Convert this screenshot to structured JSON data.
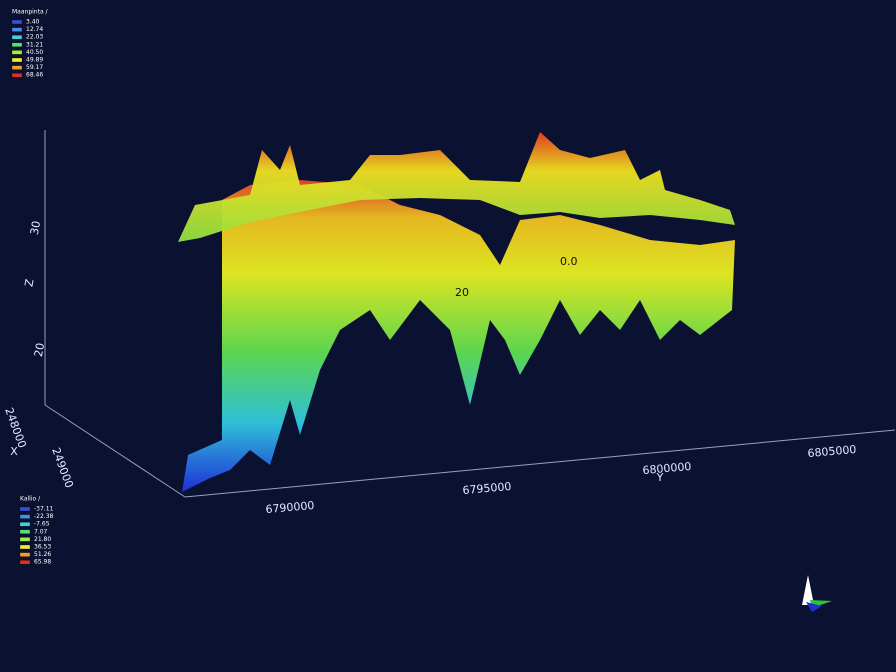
{
  "legends": [
    {
      "title": "Maanpinta /",
      "items": [
        {
          "label": "3.40",
          "color": "#3a4fd8"
        },
        {
          "label": "12.74",
          "color": "#4a8ee8"
        },
        {
          "label": "22.03",
          "color": "#45d0d8"
        },
        {
          "label": "31.21",
          "color": "#55e07a"
        },
        {
          "label": "40.50",
          "color": "#a4f040"
        },
        {
          "label": "49.89",
          "color": "#f0ee30"
        },
        {
          "label": "59.17",
          "color": "#f0a028"
        },
        {
          "label": "68.46",
          "color": "#e0302a"
        }
      ]
    },
    {
      "title": "Kallio /",
      "items": [
        {
          "label": "-37.11",
          "color": "#3a4fd8"
        },
        {
          "label": "-22.38",
          "color": "#4a8ee8"
        },
        {
          "label": "-7.65",
          "color": "#45d0d8"
        },
        {
          "label": "7.07",
          "color": "#55e07a"
        },
        {
          "label": "21.80",
          "color": "#a4f040"
        },
        {
          "label": "36.53",
          "color": "#f0ee30"
        },
        {
          "label": "51.26",
          "color": "#f0a028"
        },
        {
          "label": "65.98",
          "color": "#e0302a"
        }
      ]
    }
  ],
  "axes": {
    "y": {
      "title": "Y",
      "ticks": [
        "6790000",
        "6795000",
        "6800000",
        "6805000"
      ]
    },
    "x": {
      "title": "X",
      "ticks": [
        "248000",
        "249000"
      ]
    },
    "z": {
      "title": "Z",
      "ticks": [
        "30",
        "20"
      ]
    }
  },
  "contour_labels": [
    "20",
    "0.0"
  ]
}
